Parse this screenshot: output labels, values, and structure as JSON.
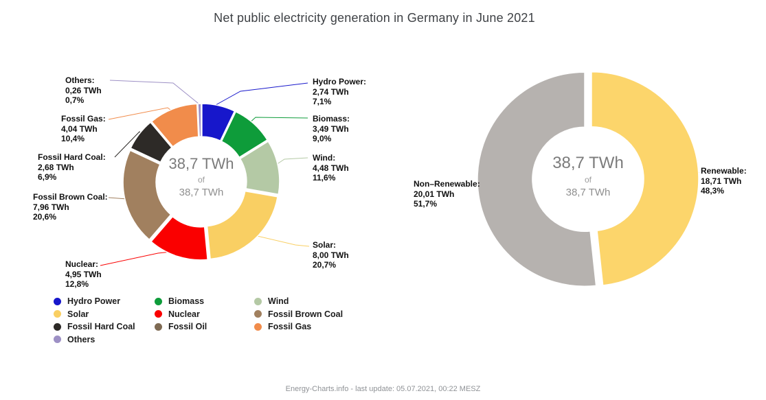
{
  "title": "Net public electricity generation in Germany in June 2021",
  "footer": "Energy-Charts.info - last update: 05.07.2021, 00:22 MESZ",
  "chart_data": [
    {
      "type": "pie",
      "name": "generation-by-source",
      "title": "Net public electricity generation by source",
      "unit": "TWh",
      "total_twh": 38.7,
      "center": {
        "line1": "38,7 TWh",
        "line2": "of",
        "line3": "38,7 TWh"
      },
      "slices": [
        {
          "name": "Hydro Power",
          "twh": 2.74,
          "percent": 7.1,
          "color": "#1717cb",
          "callout": {
            "title": "Hydro Power:",
            "value": "2,74 TWh",
            "percent": "7,1%"
          }
        },
        {
          "name": "Biomass",
          "twh": 3.49,
          "percent": 9.0,
          "color": "#0e9c3a",
          "callout": {
            "title": "Biomass:",
            "value": "3,49 TWh",
            "percent": "9,0%"
          }
        },
        {
          "name": "Wind",
          "twh": 4.48,
          "percent": 11.6,
          "color": "#b4c9a5",
          "callout": {
            "title": "Wind:",
            "value": "4,48 TWh",
            "percent": "11,6%"
          }
        },
        {
          "name": "Solar",
          "twh": 8.0,
          "percent": 20.7,
          "color": "#f9cf63",
          "callout": {
            "title": "Solar:",
            "value": "8,00 TWh",
            "percent": "20,7%"
          }
        },
        {
          "name": "Nuclear",
          "twh": 4.95,
          "percent": 12.8,
          "color": "#fa0000",
          "callout": {
            "title": "Nuclear:",
            "value": "4,95 TWh",
            "percent": "12,8%"
          }
        },
        {
          "name": "Fossil Brown Coal",
          "twh": 7.96,
          "percent": 20.6,
          "color": "#a1805f",
          "callout": {
            "title": "Fossil Brown Coal:",
            "value": "7,96 TWh",
            "percent": "20,6%"
          }
        },
        {
          "name": "Fossil Hard Coal",
          "twh": 2.68,
          "percent": 6.9,
          "color": "#2d2a27",
          "callout": {
            "title": "Fossil Hard Coal:",
            "value": "2,68 TWh",
            "percent": "6,9%"
          }
        },
        {
          "name": "Fossil Gas",
          "twh": 4.04,
          "percent": 10.4,
          "color": "#f18c4b",
          "callout": {
            "title": "Fossil Gas:",
            "value": "4,04 TWh",
            "percent": "10,4%"
          }
        },
        {
          "name": "Others",
          "twh": 0.26,
          "percent": 0.7,
          "color": "#9d90c5",
          "callout": {
            "title": "Others:",
            "value": "0,26 TWh",
            "percent": "0,7%"
          }
        }
      ]
    },
    {
      "type": "pie",
      "name": "renewable-share",
      "title": "Renewable vs non-renewable share",
      "unit": "TWh",
      "total_twh": 38.7,
      "center": {
        "line1": "38,7 TWh",
        "line2": "of",
        "line3": "38,7 TWh"
      },
      "slices": [
        {
          "name": "Renewable",
          "twh": 18.71,
          "percent": 48.3,
          "color": "#fcd56b",
          "callout": {
            "title": "Renewable:",
            "value": "18,71 TWh",
            "percent": "48,3%"
          }
        },
        {
          "name": "Non-Renewable",
          "twh": 20.01,
          "percent": 51.7,
          "color": "#b6b2af",
          "callout": {
            "title": "Non–Renewable:",
            "value": "20,01 TWh",
            "percent": "51,7%"
          }
        }
      ]
    }
  ],
  "legend": {
    "items": [
      {
        "label": "Hydro Power",
        "color": "#1717cb"
      },
      {
        "label": "Biomass",
        "color": "#0e9c3a"
      },
      {
        "label": "Wind",
        "color": "#b4c9a5"
      },
      {
        "label": "Solar",
        "color": "#f9cf63"
      },
      {
        "label": "Nuclear",
        "color": "#fa0000"
      },
      {
        "label": "Fossil Brown Coal",
        "color": "#a1805f"
      },
      {
        "label": "Fossil Hard Coal",
        "color": "#2d2a27"
      },
      {
        "label": "Fossil Oil",
        "color": "#7e6a53"
      },
      {
        "label": "Fossil Gas",
        "color": "#f18c4b"
      },
      {
        "label": "Others",
        "color": "#9d90c5"
      }
    ]
  }
}
